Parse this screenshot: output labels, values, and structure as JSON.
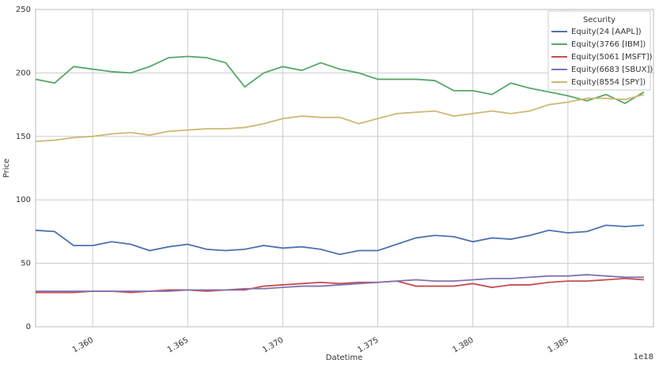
{
  "chart_data": {
    "type": "line",
    "xlabel": "Datetime",
    "ylabel": "Price",
    "x_offset_label": "1e18",
    "legend_title": "Security",
    "legend": "upper right",
    "grid": true,
    "xlim": [
      1.357,
      1.3895
    ],
    "ylim": [
      0,
      250
    ],
    "xticks": [
      {
        "value": 1.36,
        "label": "1.360"
      },
      {
        "value": 1.365,
        "label": "1.365"
      },
      {
        "value": 1.37,
        "label": "1.370"
      },
      {
        "value": 1.375,
        "label": "1.375"
      },
      {
        "value": 1.38,
        "label": "1.380"
      },
      {
        "value": 1.385,
        "label": "1.385"
      }
    ],
    "yticks": [
      0,
      50,
      100,
      150,
      200,
      250
    ],
    "x": [
      1.357,
      1.358,
      1.359,
      1.36,
      1.361,
      1.362,
      1.363,
      1.364,
      1.365,
      1.366,
      1.367,
      1.368,
      1.369,
      1.37,
      1.371,
      1.372,
      1.373,
      1.374,
      1.375,
      1.376,
      1.377,
      1.378,
      1.379,
      1.38,
      1.381,
      1.382,
      1.383,
      1.384,
      1.385,
      1.386,
      1.387,
      1.388,
      1.389
    ],
    "series": [
      {
        "name": "Equity(24 [AAPL])",
        "color": "#4c72b0",
        "values": [
          76,
          75,
          64,
          64,
          67,
          65,
          60,
          63,
          65,
          61,
          60,
          61,
          64,
          62,
          63,
          61,
          57,
          60,
          60,
          65,
          70,
          72,
          71,
          67,
          70,
          69,
          72,
          76,
          74,
          75,
          80,
          79,
          80
        ]
      },
      {
        "name": "Equity(3766 [IBM])",
        "color": "#55a868",
        "values": [
          195,
          192,
          205,
          203,
          201,
          200,
          205,
          212,
          213,
          212,
          208,
          189,
          200,
          205,
          202,
          208,
          203,
          200,
          195,
          195,
          195,
          194,
          186,
          186,
          183,
          192,
          188,
          185,
          182,
          178,
          183,
          176,
          185
        ]
      },
      {
        "name": "Equity(5061 [MSFT])",
        "color": "#c44e52",
        "values": [
          27,
          27,
          27,
          28,
          28,
          27,
          28,
          29,
          29,
          28,
          29,
          29,
          32,
          33,
          34,
          35,
          34,
          35,
          35,
          36,
          32,
          32,
          32,
          34,
          31,
          33,
          33,
          35,
          36,
          36,
          37,
          38,
          37
        ]
      },
      {
        "name": "Equity(6683 [SBUX])",
        "color": "#8172b2",
        "values": [
          28,
          28,
          28,
          28,
          28,
          28,
          28,
          28,
          29,
          29,
          29,
          30,
          30,
          31,
          32,
          32,
          33,
          34,
          35,
          36,
          37,
          36,
          36,
          37,
          38,
          38,
          39,
          40,
          40,
          41,
          40,
          39,
          39
        ]
      },
      {
        "name": "Equity(8554 [SPY])",
        "color": "#ccb974",
        "values": [
          146,
          147,
          149,
          150,
          152,
          153,
          151,
          154,
          155,
          156,
          156,
          157,
          160,
          164,
          166,
          165,
          165,
          160,
          164,
          168,
          169,
          170,
          166,
          168,
          170,
          168,
          170,
          175,
          177,
          180,
          180,
          179,
          183
        ]
      }
    ]
  }
}
